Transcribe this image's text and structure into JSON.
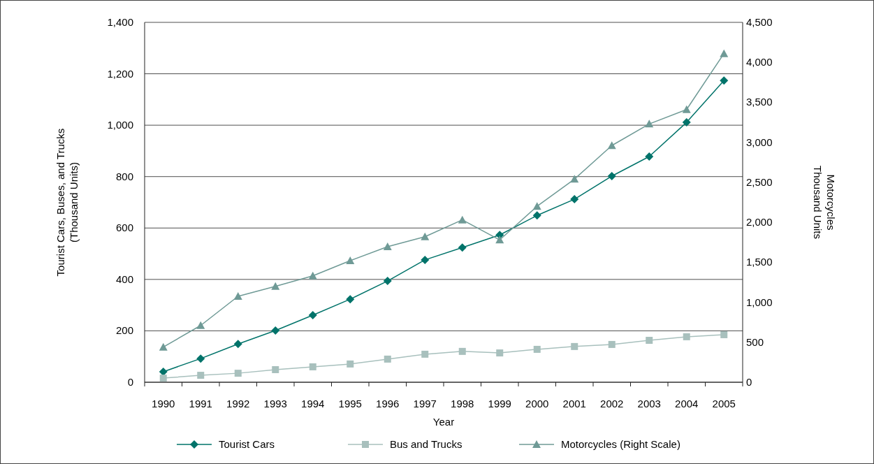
{
  "chart_data": {
    "type": "line",
    "xlabel": "Year",
    "ylabel": "Tourist Cars, Buses, and Trucks\n(Thousand Units)",
    "y2label": "Motorcycles\nThousand Units",
    "categories": [
      "1990",
      "1991",
      "1992",
      "1993",
      "1994",
      "1995",
      "1996",
      "1997",
      "1998",
      "1999",
      "2000",
      "2001",
      "2002",
      "2003",
      "2004",
      "2005"
    ],
    "series": [
      {
        "name": "Tourist Cars",
        "color": "#00736a",
        "marker": "diamond",
        "values": [
          41,
          92,
          149,
          201,
          261,
          323,
          394,
          476,
          524,
          573,
          649,
          712,
          802,
          878,
          1011,
          1174
        ]
      },
      {
        "name": "Bus and Trucks",
        "color": "#a8c0bd",
        "marker": "square",
        "values": [
          16,
          27,
          35,
          49,
          60,
          71,
          90,
          109,
          120,
          114,
          128,
          139,
          147,
          163,
          177,
          185
        ]
      },
      {
        "name": "Motorcycles (Right Scale)",
        "color": "#6f9a96",
        "marker": "triangle",
        "axis": "y2",
        "values": [
          440,
          710,
          1075,
          1200,
          1330,
          1520,
          1695,
          1820,
          2030,
          1780,
          2200,
          2540,
          2960,
          3230,
          3410,
          4110
        ]
      }
    ],
    "ylim": [
      0,
      1400
    ],
    "yticks": [
      {
        "value": 0,
        "label": "0"
      },
      {
        "value": 200,
        "label": "200"
      },
      {
        "value": 400,
        "label": "400"
      },
      {
        "value": 600,
        "label": "600"
      },
      {
        "value": 800,
        "label": "800"
      },
      {
        "value": 1000,
        "label": "1,000"
      },
      {
        "value": 1200,
        "label": "1,200"
      },
      {
        "value": 1400,
        "label": "1,400"
      }
    ],
    "y2lim": [
      0,
      4500
    ],
    "y2ticks": [
      {
        "value": 0,
        "label": "0"
      },
      {
        "value": 500,
        "label": "500"
      },
      {
        "value": 1000,
        "label": "1,000"
      },
      {
        "value": 1500,
        "label": "1,500"
      },
      {
        "value": 2000,
        "label": "2,000"
      },
      {
        "value": 2500,
        "label": "2,500"
      },
      {
        "value": 3000,
        "label": "3,000"
      },
      {
        "value": 3500,
        "label": "3,500"
      },
      {
        "value": 4000,
        "label": "4,000"
      },
      {
        "value": 4500,
        "label": "4,500"
      }
    ],
    "grid": "y",
    "legend": "bottom"
  }
}
